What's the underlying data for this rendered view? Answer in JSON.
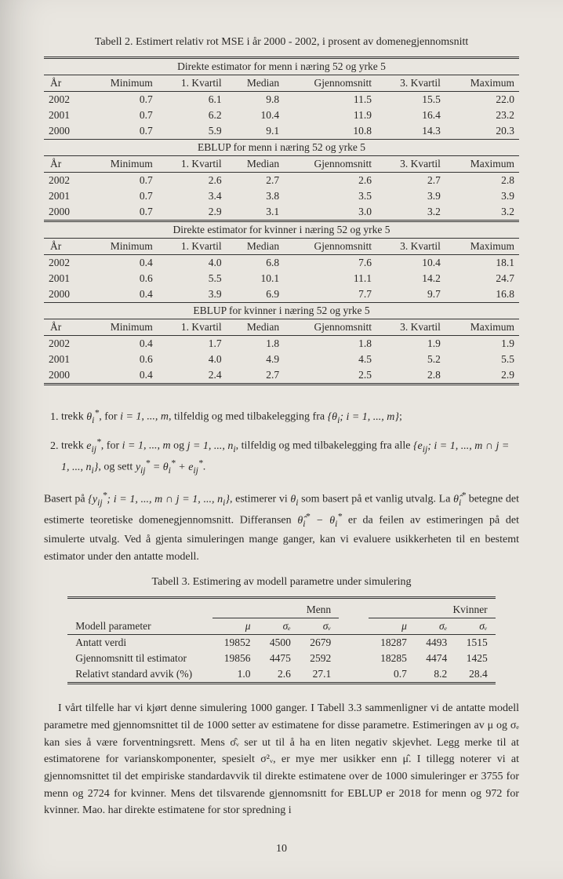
{
  "table2": {
    "caption": "Tabell 2. Estimert relativ rot MSE i år 2000 - 2002, i prosent av domenegjennomsnitt",
    "columns": [
      "År",
      "Minimum",
      "1. Kvartil",
      "Median",
      "Gjennomsnitt",
      "3. Kvartil",
      "Maximum"
    ],
    "sections": [
      {
        "title": "Direkte estimator for menn i næring 52 og yrke 5",
        "rows": [
          [
            "2002",
            "0.7",
            "6.1",
            "9.8",
            "11.5",
            "15.5",
            "22.0"
          ],
          [
            "2001",
            "0.7",
            "6.2",
            "10.4",
            "11.9",
            "16.4",
            "23.2"
          ],
          [
            "2000",
            "0.7",
            "5.9",
            "9.1",
            "10.8",
            "14.3",
            "20.3"
          ]
        ]
      },
      {
        "title": "EBLUP for menn i næring 52 og yrke 5",
        "rows": [
          [
            "2002",
            "0.7",
            "2.6",
            "2.7",
            "2.6",
            "2.7",
            "2.8"
          ],
          [
            "2001",
            "0.7",
            "3.4",
            "3.8",
            "3.5",
            "3.9",
            "3.9"
          ],
          [
            "2000",
            "0.7",
            "2.9",
            "3.1",
            "3.0",
            "3.2",
            "3.2"
          ]
        ]
      },
      {
        "title": "Direkte estimator for kvinner i næring 52 og yrke 5",
        "rows": [
          [
            "2002",
            "0.4",
            "4.0",
            "6.8",
            "7.6",
            "10.4",
            "18.1"
          ],
          [
            "2001",
            "0.6",
            "5.5",
            "10.1",
            "11.1",
            "14.2",
            "24.7"
          ],
          [
            "2000",
            "0.4",
            "3.9",
            "6.9",
            "7.7",
            "9.7",
            "16.8"
          ]
        ]
      },
      {
        "title": "EBLUP for kvinner i næring 52 og yrke 5",
        "rows": [
          [
            "2002",
            "0.4",
            "1.7",
            "1.8",
            "1.8",
            "1.9",
            "1.9"
          ],
          [
            "2001",
            "0.6",
            "4.0",
            "4.9",
            "4.5",
            "5.2",
            "5.5"
          ],
          [
            "2000",
            "0.4",
            "2.4",
            "2.7",
            "2.5",
            "2.8",
            "2.9"
          ]
        ]
      }
    ]
  },
  "list": {
    "item1_a": "trekk ",
    "item1_b": ", for ",
    "item1_c": ", tilfeldig og med tilbakelegging fra ",
    "item1_d": ";",
    "item2_a": "trekk ",
    "item2_b": ", for ",
    "item2_c": " og ",
    "item2_d": ", tilfeldig og med tilbakelegging fra alle ",
    "item2_e": ", og sett ",
    "item2_f": "."
  },
  "para1": {
    "a": "Basert på ",
    "b": ", estimerer vi ",
    "c": " som basert på et vanlig utvalg. La ",
    "d": " betegne det estimerte teoretiske domenegjennomsnitt. Differansen ",
    "e": " er da feilen av estimeringen på det simulerte utvalg. Ved å gjenta simuleringen mange ganger, kan vi evaluere usikkerheten til en bestemt estimator under den antatte modell."
  },
  "table3": {
    "caption": "Tabell 3. Estimering av modell parametre under simulering",
    "group_labels": [
      "Menn",
      "Kvinner"
    ],
    "col_syms": [
      "μ",
      "σₑ",
      "σᵥ",
      "μ",
      "σₑ",
      "σᵥ"
    ],
    "rows": [
      [
        "Modell parameter",
        "",
        "",
        "",
        "",
        "",
        ""
      ],
      [
        "Antatt verdi",
        "19852",
        "4500",
        "2679",
        "18287",
        "4493",
        "1515"
      ],
      [
        "Gjennomsnitt til estimator",
        "19856",
        "4475",
        "2592",
        "18285",
        "4474",
        "1425"
      ],
      [
        "Relativt standard avvik (%)",
        "1.0",
        "2.6",
        "27.1",
        "0.7",
        "8.2",
        "28.4"
      ]
    ]
  },
  "para2": "I vårt tilfelle har vi kjørt denne simulering 1000 ganger. I Tabell 3.3 sammenligner vi de antatte modell parametre med gjennomsnittet til de 1000 setter av estimatene for disse parametre. Estimeringen av μ og σₑ kan sies å være forventningsrett. Mens σ̂ᵥ ser ut til å ha en liten negativ skjevhet. Legg merke til at estimatorene for varianskomponenter, spesielt σ²ᵥ, er mye mer usikker enn μ̂. I tillegg noterer vi at gjennomsnittet til det empiriske standardavvik til direkte estimatene over de 1000 simuleringer er 3755 for menn og 2724 for kvinner. Mens det tilsvarende gjennomsnitt for EBLUP er 2018 for menn og 972 for kvinner. Mao. har direkte estimatene for stor spredning i",
  "pagenum": "10"
}
